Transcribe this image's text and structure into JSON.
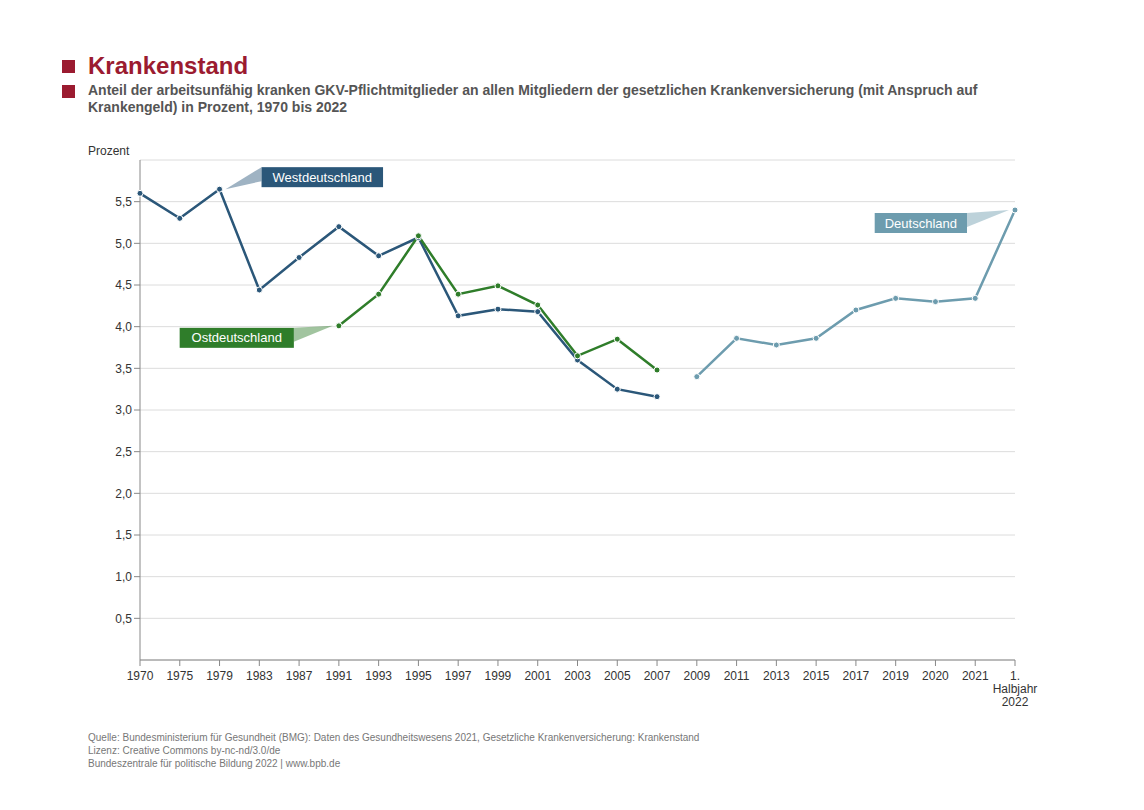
{
  "chart_data": {
    "type": "line",
    "title": "Krankenstand",
    "subtitle": "Anteil der arbeitsunfähig kranken GKV-Pflichtmitglieder an allen Mitgliedern der gesetzlichen Krankenversicherung (mit Anspruch auf Krankengeld) in Prozent, 1970 bis 2022",
    "y_label": "Prozent",
    "source": [
      "Quelle: Bundesministerium für Gesundheit (BMG): Daten des Gesundheitswesens 2021, Gesetzliche Krankenversicherung: Krankenstand",
      "Lizenz: Creative Commons by-nc-nd/3.0/de",
      "Bundeszentrale für politische Bildung 2022 | www.bpb.de"
    ],
    "categories": [
      "1970",
      "1975",
      "1979",
      "1983",
      "1987",
      "1991",
      "1993",
      "1995",
      "1997",
      "1999",
      "2001",
      "2003",
      "2005",
      "2007",
      "2009",
      "2011",
      "2013",
      "2015",
      "2017",
      "2019",
      "2020",
      "2021",
      "1. Halbjahr 2022"
    ],
    "series": [
      {
        "name": "Westdeutschland",
        "color": "#2b5779",
        "marker": "circle",
        "values": [
          5.6,
          5.3,
          5.65,
          4.44,
          4.83,
          5.2,
          4.85,
          5.07,
          4.13,
          4.21,
          4.18,
          3.6,
          3.25,
          3.16,
          null,
          null,
          null,
          null,
          null,
          null,
          null,
          null,
          null
        ]
      },
      {
        "name": "Ostdeutschland",
        "color": "#2f7d2a",
        "marker": "circle",
        "values": [
          null,
          null,
          null,
          null,
          null,
          4.01,
          4.39,
          5.09,
          4.39,
          4.49,
          4.26,
          3.65,
          3.85,
          3.48,
          null,
          null,
          null,
          null,
          null,
          null,
          null,
          null,
          null
        ]
      },
      {
        "name": "Deutschland",
        "color": "#6d9cae",
        "marker": "circle",
        "values": [
          null,
          null,
          null,
          null,
          null,
          null,
          null,
          null,
          null,
          null,
          null,
          null,
          null,
          null,
          3.4,
          3.86,
          3.78,
          3.86,
          4.2,
          4.34,
          4.3,
          4.34,
          5.4
        ]
      }
    ],
    "ylim": [
      0,
      6
    ],
    "yticks": [
      {
        "value": 0.5,
        "label": "0,5"
      },
      {
        "value": 1,
        "label": "1,0"
      },
      {
        "value": 1.5,
        "label": "1,5"
      },
      {
        "value": 2,
        "label": "2,0"
      },
      {
        "value": 2.5,
        "label": "2,5"
      },
      {
        "value": 3,
        "label": "3,0"
      },
      {
        "value": 3.5,
        "label": "3,5"
      },
      {
        "value": 4,
        "label": "4,0"
      },
      {
        "value": 4.5,
        "label": "4,5"
      },
      {
        "value": 5,
        "label": "5,0"
      },
      {
        "value": 5.5,
        "label": "5,5"
      }
    ],
    "grid": true
  }
}
